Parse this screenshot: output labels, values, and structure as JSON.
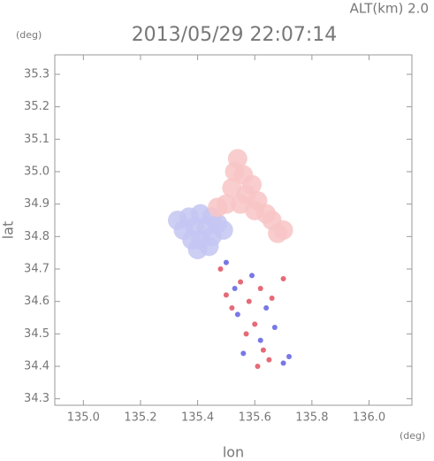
{
  "chart_data": {
    "type": "scatter",
    "title": "2013/05/29 22:07:14",
    "subtitle": "ALT(km) 2.0",
    "xlabel": "lon",
    "ylabel": "lat",
    "x_unit": "(deg)",
    "y_unit": "(deg)",
    "xlim": [
      134.9,
      136.15
    ],
    "ylim": [
      34.28,
      35.36
    ],
    "xticks": [
      {
        "value": 135.0,
        "label": "135.0"
      },
      135.2,
      135.4,
      135.6,
      135.8,
      {
        "value": 136.0,
        "label": "136.0"
      }
    ],
    "yticks": [
      34.3,
      34.4,
      34.5,
      34.6,
      34.7,
      34.8,
      34.9,
      {
        "value": 35.0,
        "label": "35.0"
      },
      35.1,
      35.2,
      35.3
    ],
    "series": [
      {
        "color": "#c4c6f2",
        "marker_size": 11,
        "x": [
          135.33,
          135.37,
          135.41,
          135.45,
          135.35,
          135.39,
          135.43,
          135.47,
          135.41,
          135.45,
          135.49,
          135.4,
          135.44,
          135.38
        ],
        "y": [
          34.85,
          34.86,
          34.87,
          34.86,
          34.82,
          34.83,
          34.83,
          34.84,
          34.79,
          34.8,
          34.82,
          34.76,
          34.77,
          34.79
        ]
      },
      {
        "color": "#f8c4c4",
        "marker_size": 11,
        "x": [
          135.54,
          135.53,
          135.56,
          135.59,
          135.52,
          135.57,
          135.61,
          135.55,
          135.6,
          135.64,
          135.66,
          135.47,
          135.5,
          135.68,
          135.7
        ],
        "y": [
          35.04,
          35.0,
          34.99,
          34.96,
          34.95,
          34.93,
          34.91,
          34.9,
          34.88,
          34.87,
          34.85,
          34.89,
          34.9,
          34.81,
          34.82
        ]
      },
      {
        "color": "#e05060",
        "marker_size": 3,
        "x": [
          135.48,
          135.55,
          135.62,
          135.58,
          135.52,
          135.66,
          135.6,
          135.57,
          135.63,
          135.5,
          135.7,
          135.65,
          135.61
        ],
        "y": [
          34.7,
          34.66,
          34.64,
          34.6,
          34.58,
          34.61,
          34.53,
          34.5,
          34.45,
          34.62,
          34.67,
          34.42,
          34.4
        ]
      },
      {
        "color": "#6060e0",
        "marker_size": 3,
        "x": [
          135.5,
          135.59,
          135.64,
          135.54,
          135.67,
          135.62,
          135.56,
          135.7,
          135.72,
          135.53
        ],
        "y": [
          34.72,
          34.68,
          34.58,
          34.56,
          34.52,
          34.48,
          34.44,
          34.41,
          34.43,
          34.64
        ]
      }
    ]
  }
}
